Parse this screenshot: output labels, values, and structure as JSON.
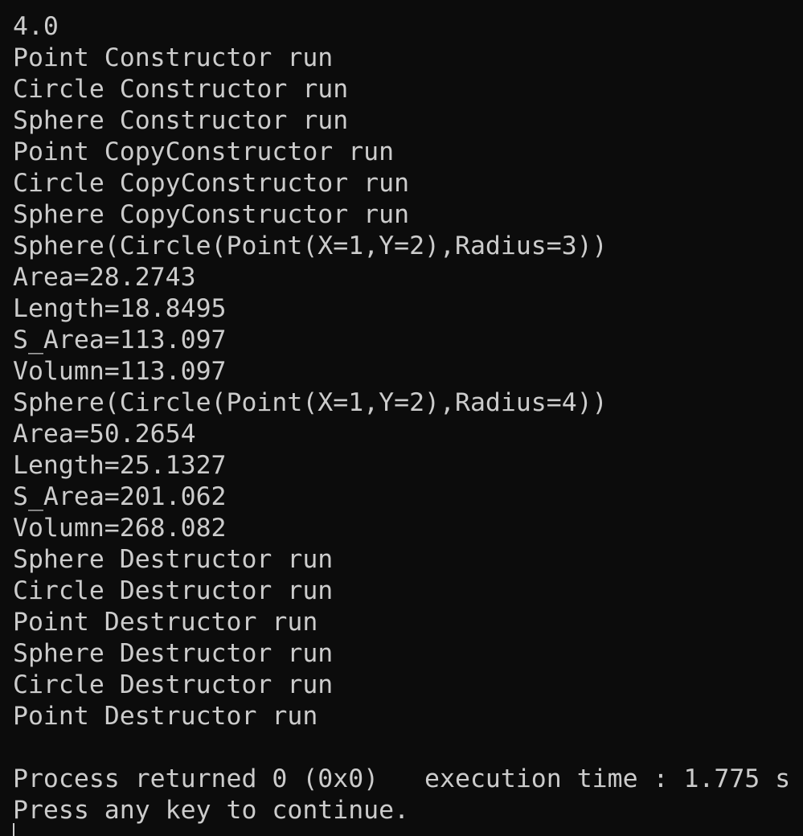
{
  "terminal": {
    "lines": [
      "4.0",
      "Point Constructor run",
      "Circle Constructor run",
      "Sphere Constructor run",
      "Point CopyConstructor run",
      "Circle CopyConstructor run",
      "Sphere CopyConstructor run",
      "Sphere(Circle(Point(X=1,Y=2),Radius=3))",
      "Area=28.2743",
      "Length=18.8495",
      "S_Area=113.097",
      "Volumn=113.097",
      "Sphere(Circle(Point(X=1,Y=2),Radius=4))",
      "Area=50.2654",
      "Length=25.1327",
      "S_Area=201.062",
      "Volumn=268.082",
      "Sphere Destructor run",
      "Circle Destructor run",
      "Point Destructor run",
      "Sphere Destructor run",
      "Circle Destructor run",
      "Point Destructor run",
      "",
      "Process returned 0 (0x0)   execution time : 1.775 s",
      "Press any key to continue."
    ]
  }
}
